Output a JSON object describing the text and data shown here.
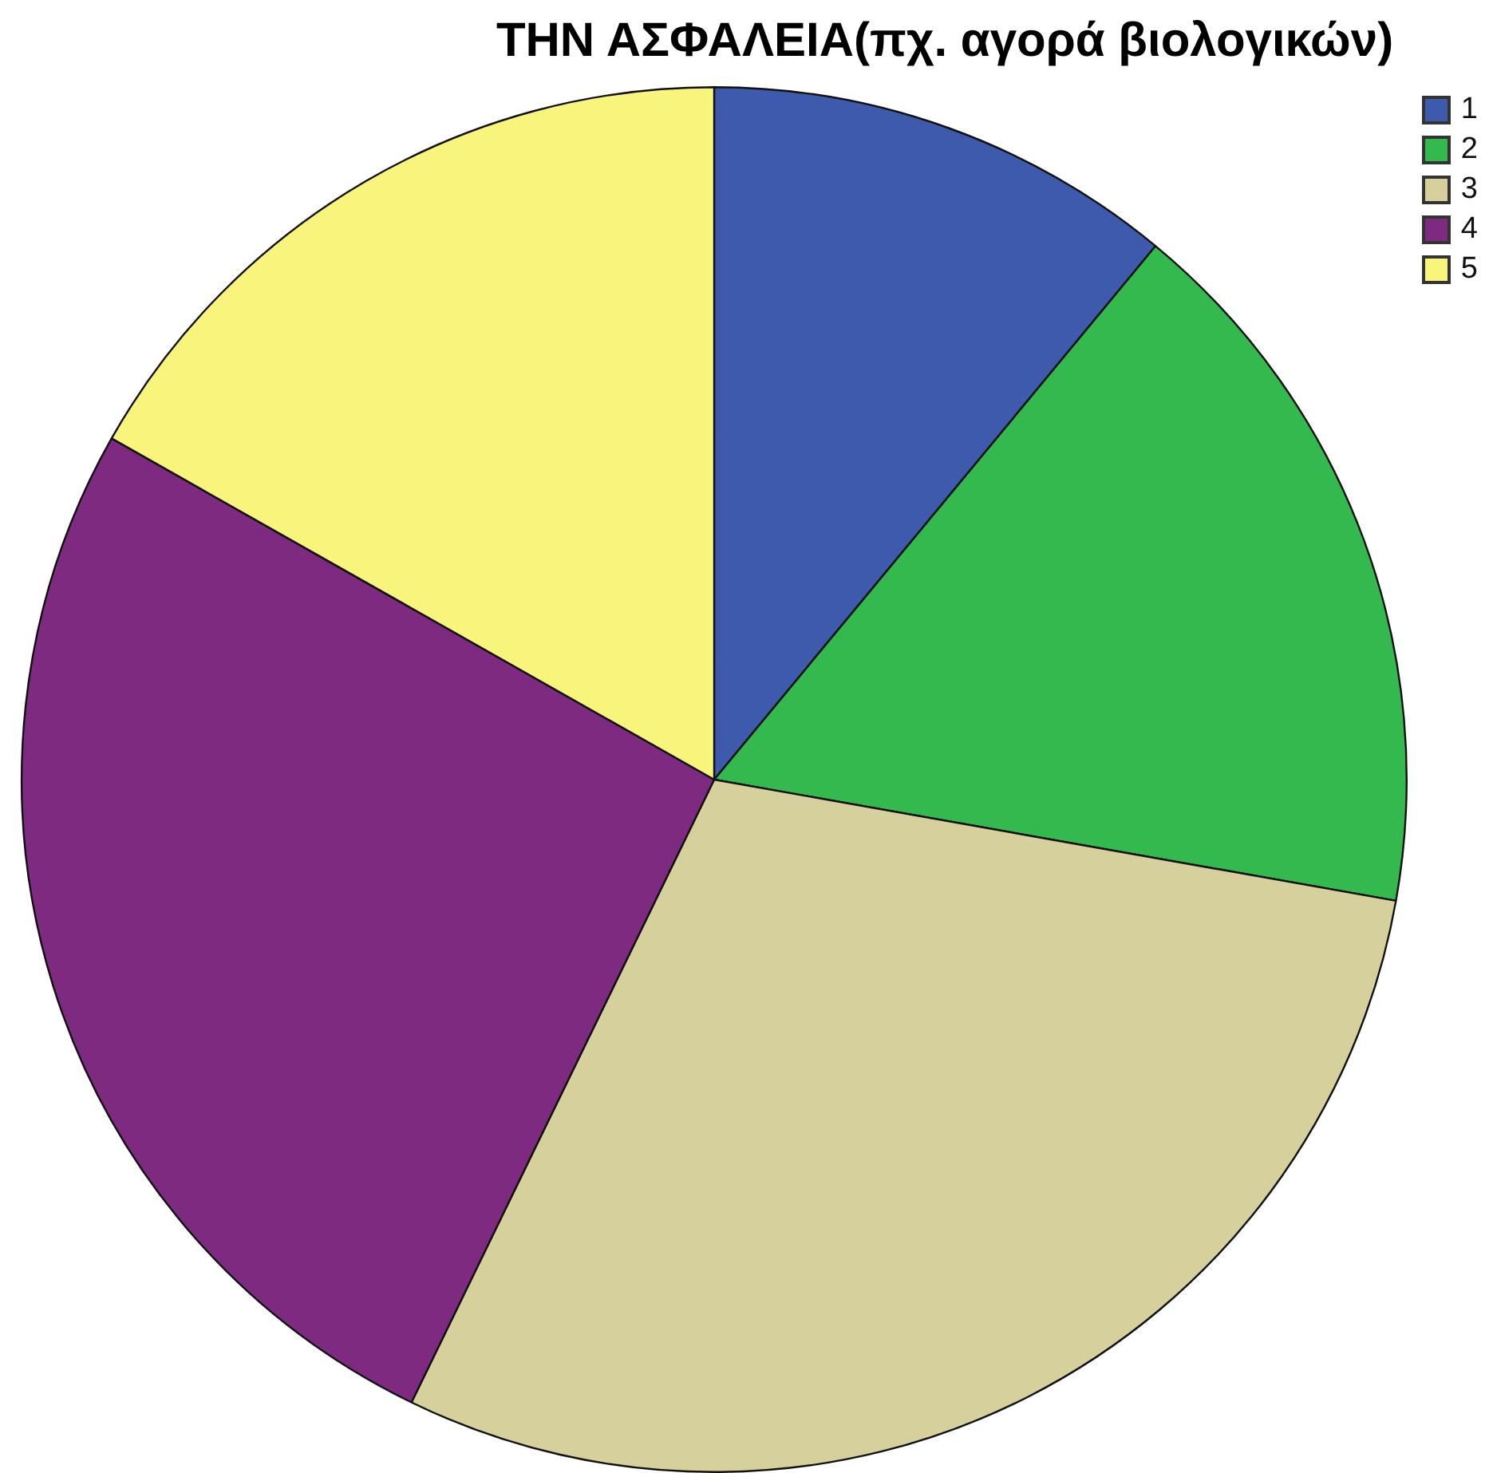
{
  "chart_data": {
    "type": "pie",
    "title": "ΤΗΝ ΑΣΦΑΛΕΙΑ(πχ. αγορά βιολογικών)",
    "categories": [
      "1",
      "2",
      "3",
      "4",
      "5"
    ],
    "values": [
      11,
      16.8,
      29.4,
      26,
      16.8
    ],
    "colors": [
      "#3e5aad",
      "#34b94f",
      "#d6d09d",
      "#7e2a80",
      "#f8f47c"
    ],
    "legend": "top right"
  }
}
